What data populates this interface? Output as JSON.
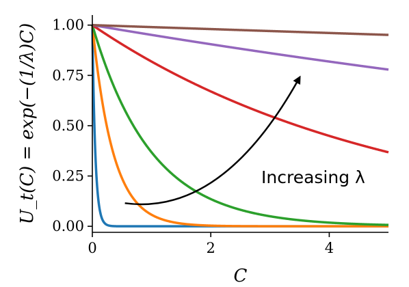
{
  "chart_data": {
    "type": "line",
    "xlabel": "C",
    "ylabel": "U_t(C) = exp(−(1/λ)C)",
    "xlim": [
      0,
      5
    ],
    "ylim": [
      -0.03,
      1.05
    ],
    "x_ticks": [
      0,
      2,
      4
    ],
    "x_tick_labels": [
      "0",
      "2",
      "4"
    ],
    "y_ticks": [
      0.0,
      0.25,
      0.5,
      0.75,
      1.0
    ],
    "y_tick_labels": [
      "0.00",
      "0.25",
      "0.50",
      "0.75",
      "1.00"
    ],
    "grid": false,
    "legend": null,
    "spines": [
      "left",
      "bottom"
    ],
    "series": [
      {
        "lambda": 0.05,
        "color": "#1f77b4"
      },
      {
        "lambda": 0.35,
        "color": "#ff7f0e"
      },
      {
        "lambda": 1.0,
        "color": "#2ca02c"
      },
      {
        "lambda": 5.0,
        "color": "#d62728"
      },
      {
        "lambda": 20.0,
        "color": "#9467bd"
      },
      {
        "lambda": 100.0,
        "color": "#8c564b"
      }
    ],
    "annotation": {
      "text": "Increasing λ",
      "arrow": {
        "start": [
          0.55,
          0.115
        ],
        "control": [
          2.2,
          0.05
        ],
        "end": [
          3.5,
          0.74
        ]
      }
    }
  }
}
